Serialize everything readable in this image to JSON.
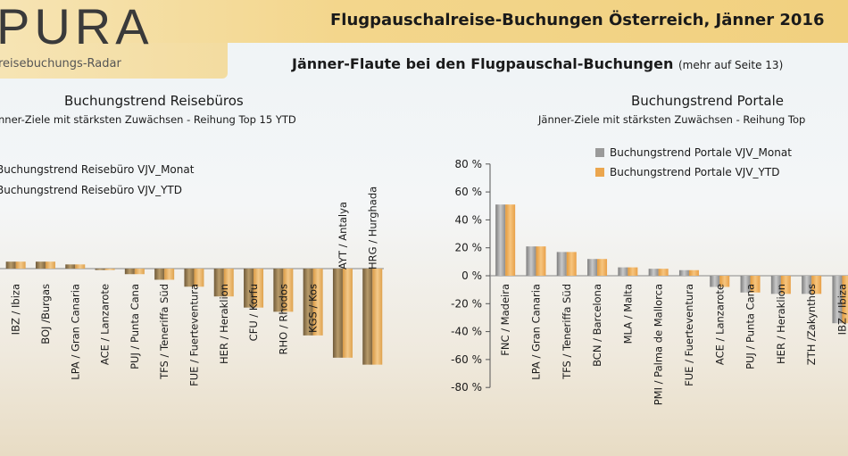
{
  "header": {
    "logo": "PURA",
    "logo_sub": "reisebuchungs-Radar",
    "title": "Flugpauschalreise-Buchungen Österreich, Jänner 2016",
    "subtitle": "Jänner-Flaute bei den Flugpauschal-Buchungen",
    "subtitle_note": "(mehr auf Seite 13)"
  },
  "colors": {
    "monat": "#9a9a9a",
    "ytd": "#eba64e",
    "banner": "#f3d68c"
  },
  "chart_data": [
    {
      "type": "bar",
      "title": "Buchungstrend Reisebüros",
      "subtitle": "nner-Ziele mit stärksten Zuwächsen - Reihung Top 15 YTD",
      "categories": [
        "IBZ / Ibiza",
        "BOJ /Burgas",
        "LPA / Gran Canaria",
        "ACE / Lanzarote",
        "PUJ / Punta Cana",
        "TFS / Teneriffa Süd",
        "FUE / Fuerteventura",
        "HER / Heraklion",
        "CFU / Korfu",
        "RHO / Rhodos",
        "KGS / Kos",
        "AYT / Antalya",
        "HRG / Hurghada"
      ],
      "series": [
        {
          "name": "Buchungstrend Reisebüro VJV_Monat",
          "values": [
            5,
            5,
            3,
            -1,
            -4,
            -8,
            -13,
            -20,
            -28,
            -31,
            -48,
            -64,
            -69
          ]
        },
        {
          "name": "Buchungstrend Reisebüro VJV_YTD",
          "values": [
            5,
            5,
            3,
            -1,
            -4,
            -8,
            -13,
            -20,
            -28,
            -31,
            -48,
            -64,
            -69
          ]
        }
      ],
      "legend": "top-left"
    },
    {
      "type": "bar",
      "title": "Buchungstrend Portale",
      "subtitle": "Jänner-Ziele mit stärksten Zuwächsen - Reihung Top",
      "categories": [
        "FNC / Madeira",
        "LPA / Gran Canaria",
        "TFS / Teneriffa Süd",
        "BCN / Barcelona",
        "MLA / Malta",
        "PMI / Palma de Mallorca",
        "FUE / Fuerteventura",
        "ACE / Lanzarote",
        "PUJ / Punta Cana",
        "HER / Heraklion",
        "ZTH /Zakynthos",
        "IBZ / Ibiza"
      ],
      "series": [
        {
          "name": "Buchungstrend Portale VJV_Monat",
          "values": [
            51,
            21,
            17,
            12,
            6,
            5,
            4,
            -8,
            -12,
            -13,
            -13,
            -34
          ]
        },
        {
          "name": "Buchungstrend Portale VJV_YTD",
          "values": [
            51,
            21,
            17,
            12,
            6,
            5,
            4,
            -8,
            -12,
            -13,
            -13,
            -34
          ]
        }
      ],
      "y_ticks": [
        "80 %",
        "60 %",
        "40 %",
        "20 %",
        "0 %",
        "-20 %",
        "-40 %",
        "-60 %",
        "-80 %"
      ],
      "ylim": [
        -80,
        80
      ],
      "legend": "top-left"
    }
  ]
}
